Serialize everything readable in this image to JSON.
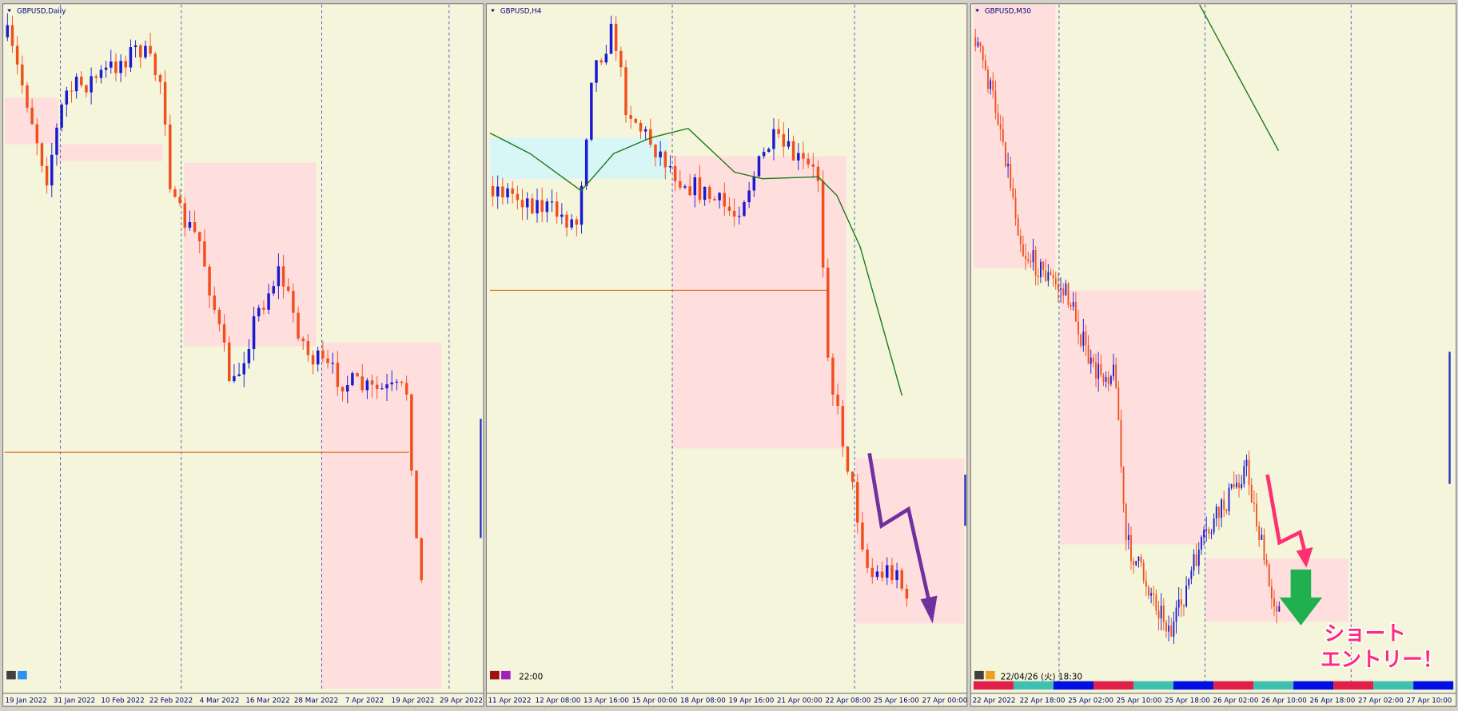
{
  "panels": [
    {
      "title": "GBPUSD,Daily",
      "x_labels": [
        "19 Jan 2022",
        "31 Jan 2022",
        "10 Feb 2022",
        "22 Feb 2022",
        "4 Mar 2022",
        "16 Mar 2022",
        "28 Mar 2022",
        "7 Apr 2022",
        "19 Apr 2022",
        "29 Apr 2022"
      ]
    },
    {
      "title": "GBPUSD,H4",
      "x_labels": [
        "11 Apr 2022",
        "12 Apr 08:00",
        "13 Apr 16:00",
        "15 Apr 00:00",
        "18 Apr 08:00",
        "19 Apr 16:00",
        "21 Apr 00:00",
        "22 Apr 08:00",
        "25 Apr 16:00",
        "27 Apr 00:00"
      ],
      "status_time": "22:00"
    },
    {
      "title": "GBPUSD,M30",
      "x_labels": [
        "22 Apr 2022",
        "22 Apr 18:00",
        "25 Apr 02:00",
        "25 Apr 10:00",
        "25 Apr 18:00",
        "26 Apr 02:00",
        "26 Apr 10:00",
        "26 Apr 18:00",
        "27 Apr 02:00",
        "27 Apr 10:00"
      ],
      "status_time": "22/04/26 (火) 18:30"
    }
  ],
  "annotation": {
    "lines": [
      "ショート",
      "エントリー！"
    ]
  }
}
